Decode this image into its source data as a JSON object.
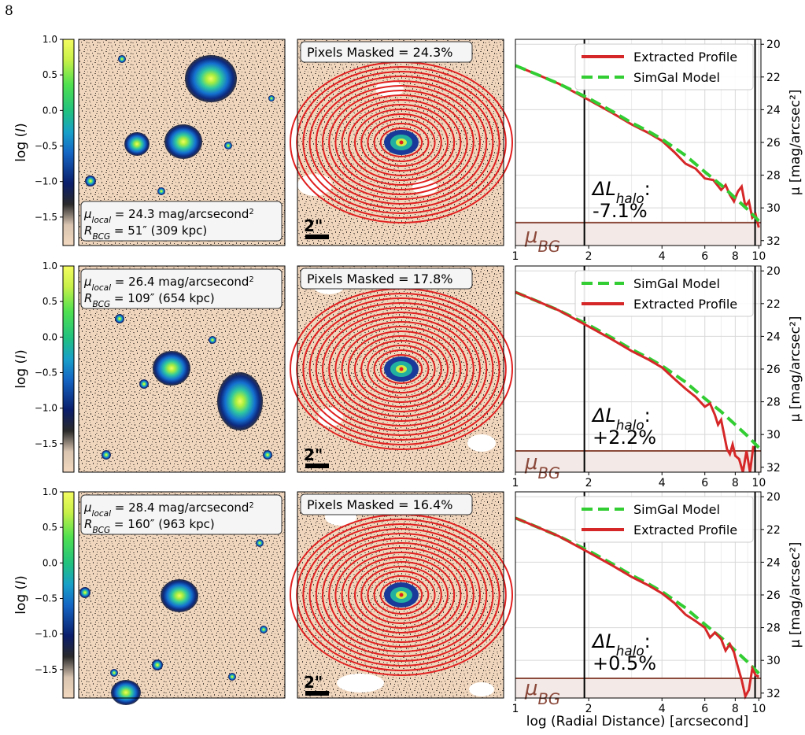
{
  "page_number": "8",
  "colorbar": {
    "label": "log (I)",
    "ticks": [
      1.0,
      0.5,
      0.0,
      -0.5,
      -1.0,
      -1.5
    ],
    "tick_labels": [
      "1.0",
      "0.5",
      "0.0",
      "−0.5",
      "−1.0",
      "−1.5"
    ],
    "range": [
      -1.9,
      1.0
    ]
  },
  "scalebar_label": "2\"",
  "rows": [
    {
      "mu_local_label": "μ",
      "mu_local_sub": "local",
      "mu_local_value": " = 24.3 mag/arcsecond",
      "r_label": "R",
      "r_sub": "BCG",
      "r_value": " = 51″ (309 kpc)",
      "pixels_masked": "Pixels Masked = 24.3%",
      "delta_l_label": "ΔL",
      "delta_l_sub": "halo",
      "delta_l_value": "-7.1%",
      "legend_order": [
        "Extracted Profile",
        "SimGal Model"
      ]
    },
    {
      "mu_local_label": "μ",
      "mu_local_sub": "local",
      "mu_local_value": " = 26.4 mag/arcsecond",
      "r_label": "R",
      "r_sub": "BCG",
      "r_value": " = 109″ (654 kpc)",
      "pixels_masked": "Pixels Masked = 17.8%",
      "delta_l_label": "ΔL",
      "delta_l_sub": "halo",
      "delta_l_value": "+2.2%",
      "legend_order": [
        "SimGal Model",
        "Extracted Profile"
      ]
    },
    {
      "mu_local_label": "μ",
      "mu_local_sub": "local",
      "mu_local_value": " = 28.4 mag/arcsecond",
      "r_label": "R",
      "r_sub": "BCG",
      "r_value": " = 160″ (963 kpc)",
      "pixels_masked": "Pixels Masked = 16.4%",
      "delta_l_label": "ΔL",
      "delta_l_sub": "halo",
      "delta_l_value": "+0.5%",
      "legend_order": [
        "SimGal Model",
        "Extracted Profile"
      ]
    }
  ],
  "chart_data": {
    "type": "line",
    "xlabel": "log (Radial Distance) [arcsecond]",
    "ylabel": "μ [mag/arcsec²]",
    "xscale": "log",
    "xlim": [
      1,
      10.2
    ],
    "ylim": [
      32.3,
      19.7
    ],
    "y_inverted": true,
    "xticks": [
      1,
      2,
      4,
      6,
      8,
      10
    ],
    "xtick_labels": [
      "1",
      "2",
      "4",
      "6",
      "8",
      "10"
    ],
    "yticks": [
      20,
      22,
      24,
      26,
      28,
      30,
      32
    ],
    "ytick_labels": [
      "20",
      "22",
      "24",
      "26",
      "28",
      "30",
      "32"
    ],
    "grid": true,
    "vertical_lines": [
      1.92,
      9.65
    ],
    "bg_label": "μ",
    "bg_label_sub": "BG",
    "panels": [
      {
        "mu_bg": 30.9,
        "series": [
          {
            "name": "Extracted Profile",
            "color": "#d62728",
            "style": "solid",
            "x": [
              1.0,
              1.25,
              1.5,
              2.0,
              2.5,
              3.0,
              3.5,
              4.0,
              4.5,
              5.0,
              5.5,
              6.0,
              6.5,
              7.0,
              7.3,
              7.6,
              7.9,
              8.2,
              8.5,
              8.8,
              9.1,
              9.4,
              9.7,
              10.0
            ],
            "y": [
              21.3,
              21.9,
              22.4,
              23.4,
              24.2,
              24.9,
              25.4,
              25.9,
              26.6,
              27.3,
              27.6,
              28.2,
              28.3,
              28.9,
              28.6,
              29.2,
              29.6,
              29.0,
              28.7,
              29.9,
              29.6,
              30.6,
              30.4,
              31.2
            ]
          },
          {
            "name": "SimGal Model",
            "color": "#32cd32",
            "style": "dashed",
            "x": [
              1.0,
              1.25,
              1.5,
              2.0,
              2.5,
              3.0,
              3.5,
              4.0,
              5.0,
              6.0,
              7.0,
              8.0,
              9.0,
              10.0
            ],
            "y": [
              21.3,
              21.9,
              22.4,
              23.3,
              24.1,
              24.8,
              25.3,
              25.8,
              26.8,
              27.8,
              28.6,
              29.4,
              30.1,
              30.8
            ]
          }
        ]
      },
      {
        "mu_bg": 31.0,
        "series": [
          {
            "name": "SimGal Model",
            "color": "#32cd32",
            "style": "dashed",
            "x": [
              1.0,
              1.25,
              1.5,
              2.0,
              2.5,
              3.0,
              3.5,
              4.0,
              5.0,
              6.0,
              7.0,
              8.0,
              9.0,
              10.0
            ],
            "y": [
              21.3,
              21.9,
              22.4,
              23.3,
              24.1,
              24.8,
              25.3,
              25.8,
              26.8,
              27.8,
              28.6,
              29.4,
              30.1,
              30.8
            ]
          },
          {
            "name": "Extracted Profile",
            "color": "#d62728",
            "style": "solid",
            "x": [
              1.0,
              1.25,
              1.5,
              2.0,
              2.5,
              3.0,
              3.5,
              4.0,
              4.5,
              5.0,
              5.5,
              6.0,
              6.3,
              6.6,
              6.8,
              7.0,
              7.2,
              7.4,
              7.6,
              7.8,
              8.0,
              8.3,
              8.6,
              8.9,
              9.2,
              9.5
            ],
            "y": [
              21.3,
              21.9,
              22.4,
              23.4,
              24.2,
              24.9,
              25.4,
              25.9,
              26.6,
              27.2,
              27.7,
              28.3,
              28.1,
              28.8,
              29.4,
              29.1,
              30.0,
              30.9,
              31.2,
              30.6,
              31.3,
              31.5,
              32.3,
              31.0,
              32.3,
              30.7
            ]
          }
        ]
      },
      {
        "mu_bg": 31.1,
        "series": [
          {
            "name": "SimGal Model",
            "color": "#32cd32",
            "style": "dashed",
            "x": [
              1.0,
              1.25,
              1.5,
              2.0,
              2.5,
              3.0,
              3.5,
              4.0,
              5.0,
              6.0,
              7.0,
              8.0,
              9.0,
              10.0
            ],
            "y": [
              21.3,
              21.9,
              22.4,
              23.3,
              24.1,
              24.8,
              25.3,
              25.8,
              26.8,
              27.8,
              28.6,
              29.4,
              30.1,
              30.8
            ]
          },
          {
            "name": "Extracted Profile",
            "color": "#d62728",
            "style": "solid",
            "x": [
              1.0,
              1.25,
              1.5,
              2.0,
              2.5,
              3.0,
              3.5,
              4.0,
              4.5,
              5.0,
              5.5,
              6.0,
              6.3,
              6.6,
              7.0,
              7.3,
              7.6,
              7.9,
              8.2,
              8.5,
              8.8,
              9.1,
              9.4,
              9.7,
              10.0
            ],
            "y": [
              21.3,
              21.9,
              22.4,
              23.4,
              24.2,
              24.9,
              25.4,
              25.9,
              26.5,
              27.2,
              27.6,
              28.0,
              28.6,
              28.3,
              28.7,
              29.4,
              29.0,
              29.5,
              30.4,
              31.2,
              32.2,
              31.8,
              30.5,
              30.9,
              31.0
            ]
          }
        ]
      }
    ]
  }
}
